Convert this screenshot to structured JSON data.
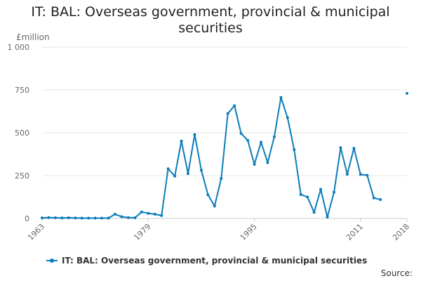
{
  "title_line1": "IT: BAL: Overseas government, provincial & municipal",
  "title_line2": "securities",
  "source_label": "Source:",
  "colors": {
    "series": "#0c7cba",
    "grid": "#e6e6e6",
    "axis": "#cccccc",
    "text": "#666666"
  },
  "chart_data": {
    "type": "line",
    "title": "IT: BAL: Overseas government, provincial & municipal securities",
    "ylabel": "£million",
    "ylim": [
      0,
      1000
    ],
    "yticks": [
      0,
      250,
      500,
      750,
      1000
    ],
    "ytick_labels": [
      "0",
      "250",
      "500",
      "750",
      "1 000"
    ],
    "xlim": [
      1963,
      2018
    ],
    "xticks": [
      1963,
      1979,
      1995,
      2011,
      2018
    ],
    "xtick_labels": [
      "1963",
      "1979",
      "1995",
      "2011",
      "2018"
    ],
    "grid": true,
    "legend": "bottom",
    "series": [
      {
        "name": "IT: BAL: Overseas government, provincial & municipal securities",
        "x": [
          1963,
          1964,
          1965,
          1966,
          1967,
          1968,
          1969,
          1970,
          1971,
          1972,
          1973,
          1974,
          1975,
          1976,
          1977,
          1978,
          1979,
          1980,
          1981,
          1982,
          1983,
          1984,
          1985,
          1986,
          1987,
          1988,
          1989,
          1990,
          1991,
          1992,
          1993,
          1994,
          1995,
          1996,
          1997,
          1998,
          1999,
          2000,
          2001,
          2002,
          2003,
          2004,
          2005,
          2006,
          2007,
          2008,
          2009,
          2010,
          2011,
          2012,
          2013,
          2014,
          2015,
          2016,
          2017,
          2018
        ],
        "y": [
          3,
          5,
          4,
          3,
          4,
          3,
          2,
          2,
          2,
          2,
          2,
          25,
          10,
          5,
          4,
          38,
          30,
          25,
          17,
          290,
          247,
          452,
          262,
          490,
          282,
          138,
          72,
          233,
          612,
          658,
          496,
          456,
          316,
          445,
          326,
          476,
          706,
          588,
          401,
          140,
          125,
          36,
          170,
          8,
          153,
          413,
          258,
          410,
          257,
          252,
          120,
          110,
          null,
          null,
          null,
          730
        ]
      }
    ]
  }
}
